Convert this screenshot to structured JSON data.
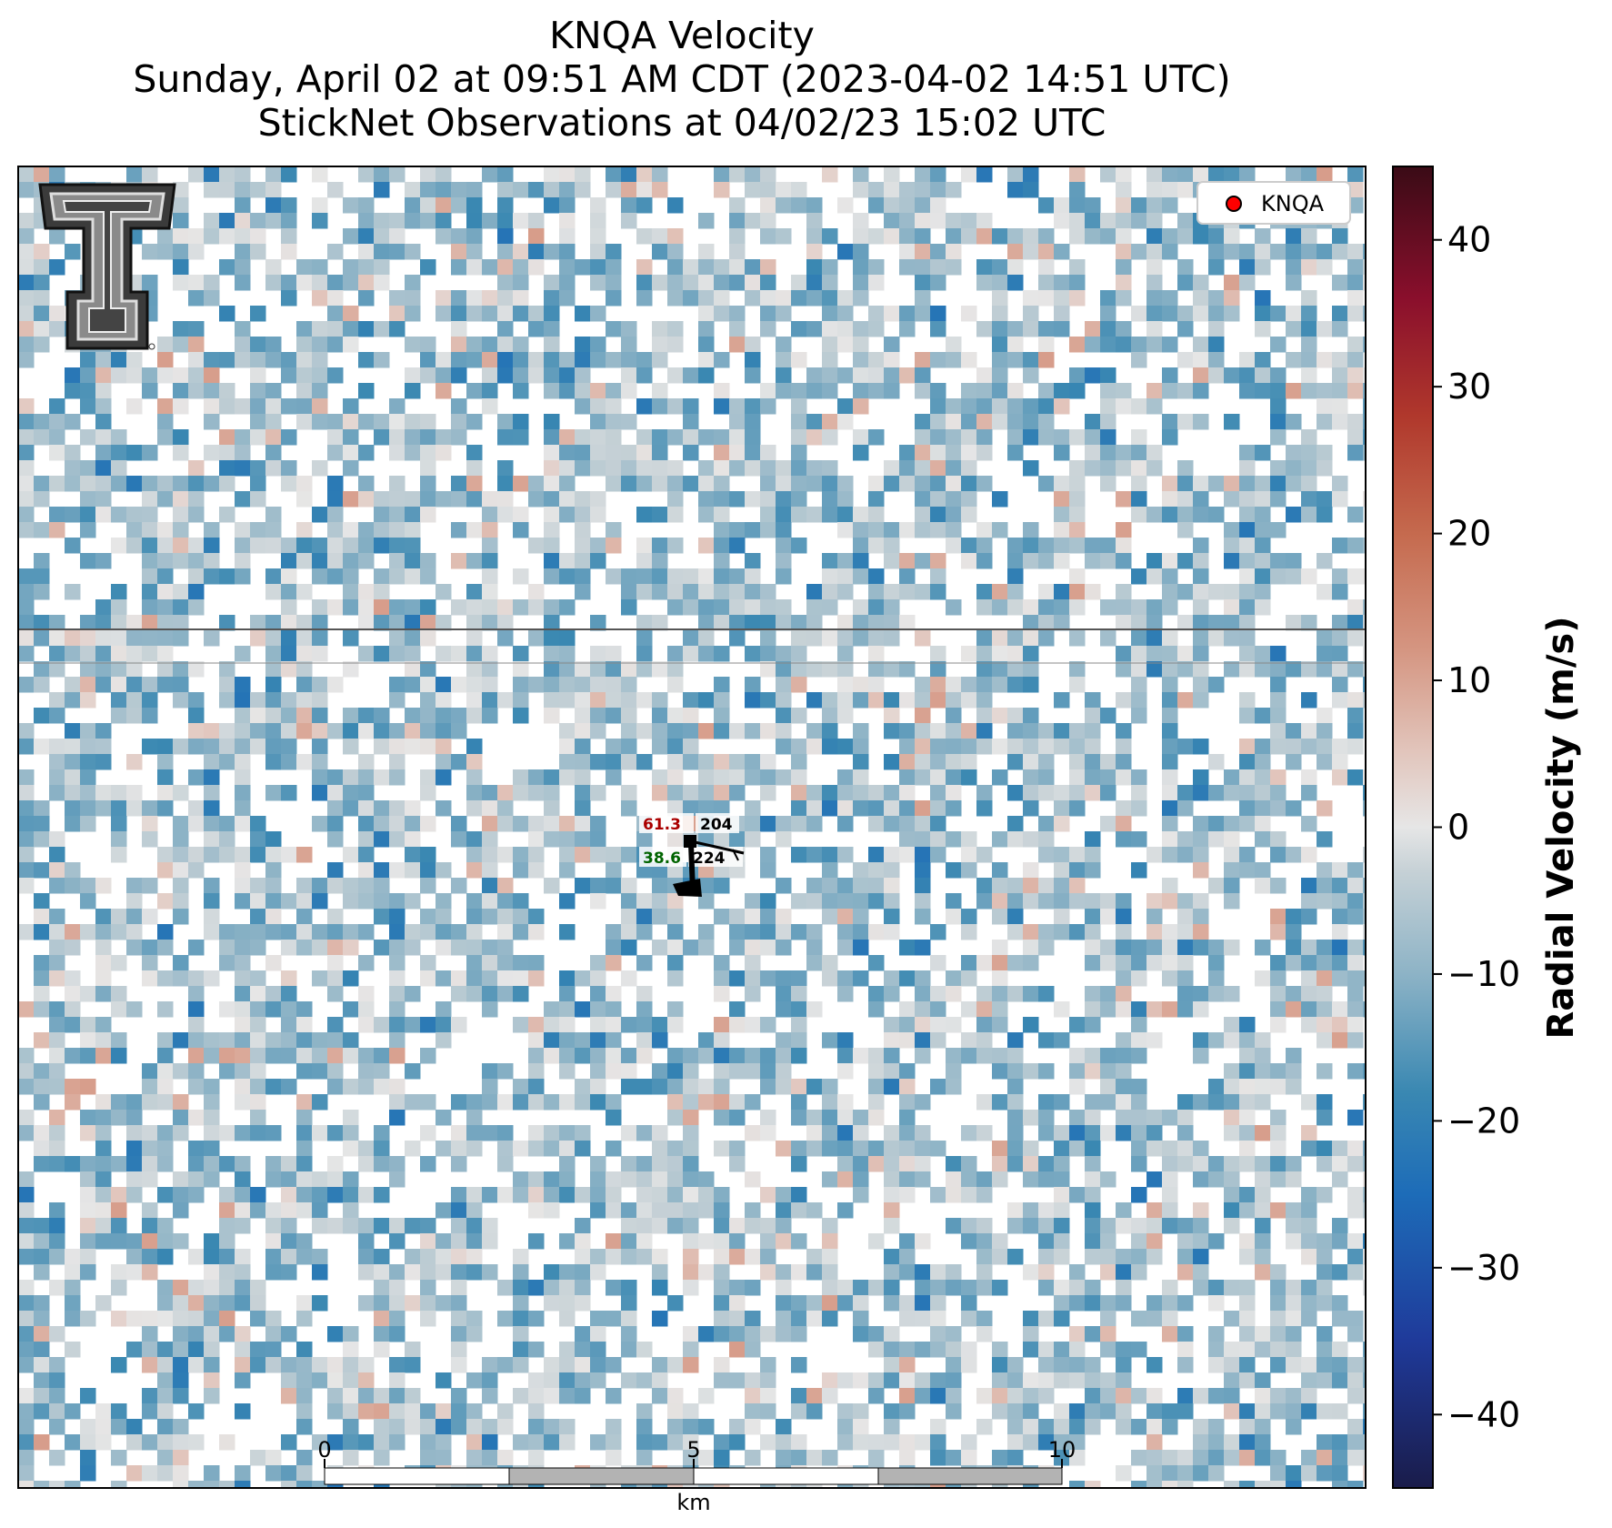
{
  "title": {
    "line1": "KNQA Velocity",
    "line2": "Sunday, April 02 at 09:51 AM CDT (2023-04-02 14:51 UTC)",
    "line3": "StickNet Observations at 04/02/23 15:02 UTC"
  },
  "legend": {
    "label": "KNQA",
    "marker_color": "#ff0000",
    "placement": "top-right"
  },
  "logo": {
    "name": "texas-tech-double-t-logo",
    "text": "T"
  },
  "chart_data": {
    "type": "heatmap",
    "title": "KNQA Velocity",
    "variable": "Radial Velocity",
    "units": "m/s",
    "colorbar": {
      "label": "Radial Velocity (m/s)",
      "range": [
        -45,
        45
      ],
      "ticks": [
        40,
        30,
        20,
        10,
        0,
        -10,
        -20,
        -30,
        -40
      ],
      "tick_labels": [
        "40",
        "30",
        "20",
        "10",
        "0",
        "−10",
        "−20",
        "−30",
        "−40"
      ],
      "stops": [
        {
          "v": -45,
          "c": "#1a1c4a"
        },
        {
          "v": -35,
          "c": "#1f3a9a"
        },
        {
          "v": -25,
          "c": "#1d6cb8"
        },
        {
          "v": -18,
          "c": "#3a88b2"
        },
        {
          "v": -10,
          "c": "#8db3c6"
        },
        {
          "v": -3,
          "c": "#c6d1d6"
        },
        {
          "v": 0,
          "c": "#e6e6e6"
        },
        {
          "v": 5,
          "c": "#e2c6bd"
        },
        {
          "v": 12,
          "c": "#d59682"
        },
        {
          "v": 20,
          "c": "#c56a4e"
        },
        {
          "v": 28,
          "c": "#b0382c"
        },
        {
          "v": 36,
          "c": "#8a0f2c"
        },
        {
          "v": 45,
          "c": "#3a0b16"
        }
      ]
    },
    "field_description_velocity_range": [
      -22,
      12
    ],
    "scale_bar": {
      "unit_label": "km",
      "tick_labels": [
        "0",
        "5",
        "10"
      ],
      "max_km": 10
    },
    "sticknet": {
      "top_left_value": "61.3",
      "top_right_value": "204",
      "bottom_left_value": "38.6",
      "bottom_right_value": "224",
      "top_left_color": "#aa0000",
      "bottom_left_color": "#006400"
    },
    "grid": false
  }
}
